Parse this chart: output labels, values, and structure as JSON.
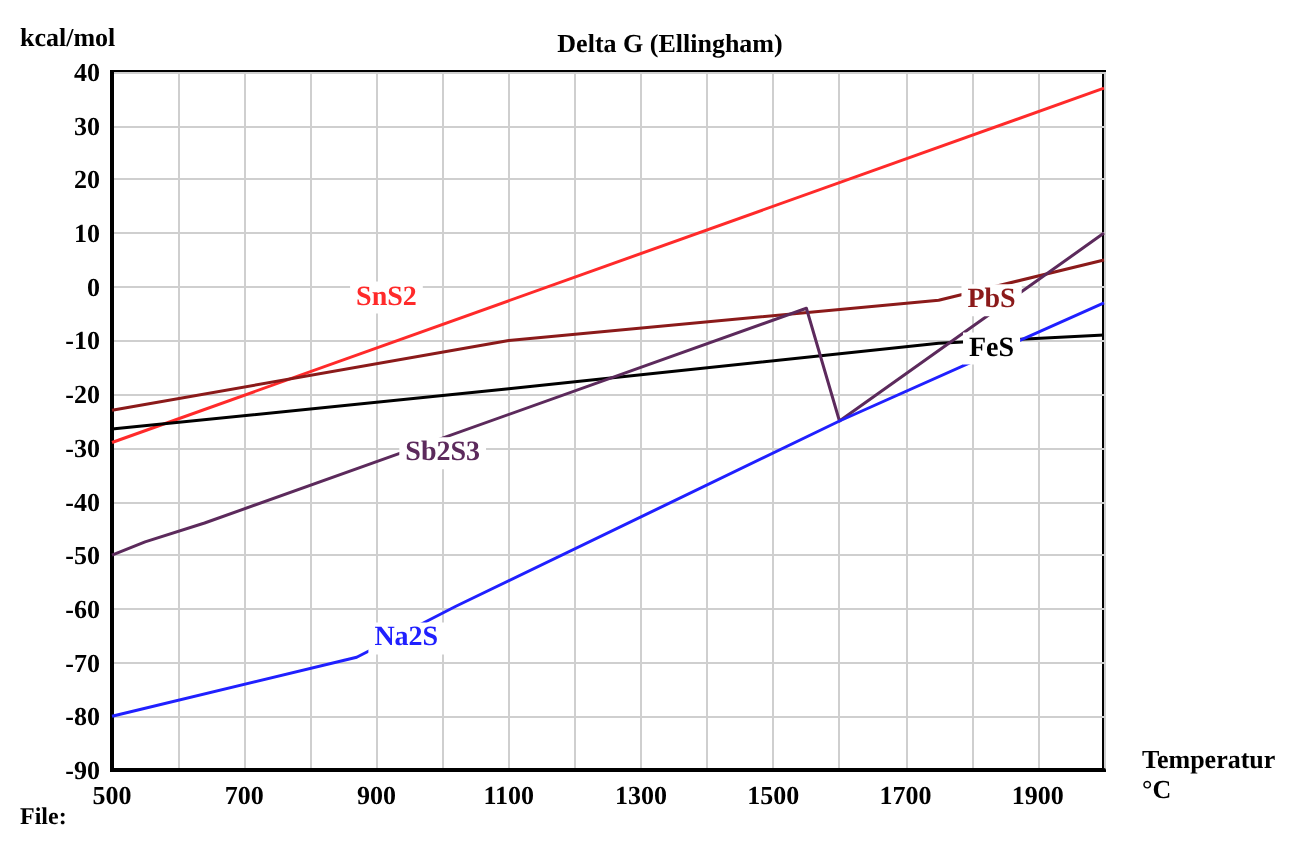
{
  "chart_data": {
    "type": "line",
    "title": "Delta G (Ellingham)",
    "ylabel": "kcal/mol",
    "xlabel": "Temperatur\n°C",
    "annotations": [
      "File:"
    ],
    "xlim": [
      500,
      2000
    ],
    "xticks": [
      500,
      {
        "value": 600,
        "label": null
      },
      700,
      {
        "value": 800,
        "label": null
      },
      900,
      {
        "value": 1000,
        "label": null
      },
      1100,
      {
        "value": 1200,
        "label": null
      },
      1300,
      {
        "value": 1400,
        "label": null
      },
      1500,
      {
        "value": 1600,
        "label": null
      },
      1700,
      {
        "value": 1800,
        "label": null
      },
      1900,
      {
        "value": 2000,
        "label": null
      }
    ],
    "ylim": [
      -90,
      40
    ],
    "yticks": [
      -90,
      -80,
      -70,
      -60,
      -50,
      -40,
      -30,
      -20,
      -10,
      0,
      10,
      20,
      30,
      40
    ],
    "grid": true,
    "marker": "none",
    "line_style": "solid",
    "series": [
      {
        "name": "SnS2",
        "color": "#ff2a2a",
        "x": [
          500,
          2000
        ],
        "values": [
          -29,
          37
        ]
      },
      {
        "name": "PbS",
        "color": "#8b1a1a",
        "x": [
          500,
          1100,
          1750,
          2000
        ],
        "values": [
          -23,
          -10,
          -2.5,
          5
        ]
      },
      {
        "name": "FeS",
        "color": "#000000",
        "x": [
          500,
          1100,
          1750,
          2000
        ],
        "values": [
          -26.5,
          -19,
          -10.5,
          -9
        ]
      },
      {
        "name": "Sb2S3",
        "color": "#5c2a5c",
        "x": [
          500,
          550,
          640,
          1550,
          1600,
          2000
        ],
        "values": [
          -50,
          -47.5,
          -44,
          -4,
          -25,
          10
        ]
      },
      {
        "name": "Na2S",
        "color": "#2020ff",
        "x": [
          500,
          870,
          1020,
          1600,
          2000
        ],
        "values": [
          -80,
          -69,
          -59.5,
          -25,
          -3
        ]
      }
    ]
  }
}
